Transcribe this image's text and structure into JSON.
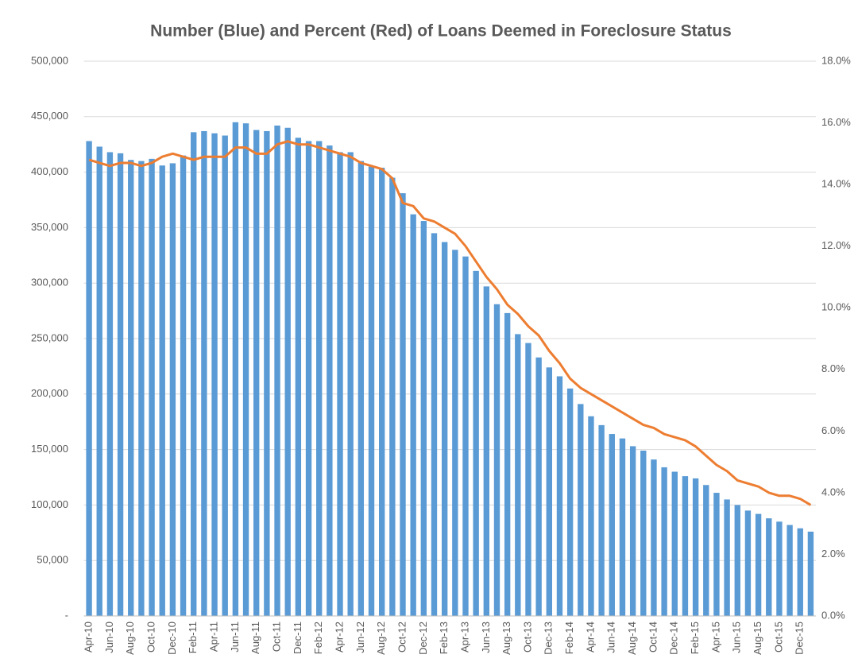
{
  "chart_data": {
    "type": "bar",
    "title": "Number (Blue) and Percent (Red) of Loans Deemed in Foreclosure Status",
    "categories": [
      "Apr-10",
      null,
      "Jun-10",
      null,
      "Aug-10",
      null,
      "Oct-10",
      null,
      "Dec-10",
      null,
      "Feb-11",
      null,
      "Apr-11",
      null,
      "Jun-11",
      null,
      "Aug-11",
      null,
      "Oct-11",
      null,
      "Dec-11",
      null,
      "Feb-12",
      null,
      "Apr-12",
      null,
      "Jun-12",
      null,
      "Aug-12",
      null,
      "Oct-12",
      null,
      "Dec-12",
      null,
      "Feb-13",
      null,
      "Apr-13",
      null,
      "Jun-13",
      null,
      "Aug-13",
      null,
      "Oct-13",
      null,
      "Dec-13",
      null,
      "Feb-14",
      null,
      "Apr-14",
      null,
      "Jun-14",
      null,
      "Aug-14",
      null,
      "Oct-14",
      null,
      "Dec-14",
      null,
      "Feb-15",
      null,
      "Apr-15",
      null,
      "Jun-15",
      null,
      "Aug-15",
      null,
      "Oct-15",
      null,
      "Dec-15",
      null
    ],
    "series": [
      {
        "type": "bar",
        "color": "#5b9bd5",
        "values": [
          428000,
          423000,
          418000,
          417000,
          411000,
          410000,
          412000,
          406000,
          408000,
          415000,
          436000,
          437000,
          435000,
          433000,
          445000,
          444000,
          438000,
          437000,
          442000,
          440000,
          431000,
          428000,
          428000,
          424000,
          418000,
          418000,
          410000,
          405000,
          404000,
          395000,
          381000,
          362000,
          356000,
          345000,
          337000,
          330000,
          324000,
          311000,
          297000,
          281000,
          273000,
          254000,
          246000,
          233000,
          224000,
          216000,
          205000,
          191000,
          180000,
          172000,
          164000,
          160000,
          153000,
          149000,
          141000,
          134000,
          130000,
          126000,
          124000,
          118000,
          111000,
          105000,
          100000,
          95000,
          92000,
          88000,
          85000,
          82000,
          79000,
          76000
        ]
      },
      {
        "type": "line",
        "color": "#ed7d31",
        "axis": "y2",
        "values": [
          14.8,
          14.7,
          14.6,
          14.7,
          14.7,
          14.6,
          14.7,
          14.9,
          15.0,
          14.9,
          14.8,
          14.9,
          14.9,
          14.9,
          15.2,
          15.2,
          15.0,
          15.0,
          15.3,
          15.4,
          15.3,
          15.3,
          15.2,
          15.1,
          15.0,
          14.9,
          14.7,
          14.6,
          14.5,
          14.2,
          13.4,
          13.3,
          12.9,
          12.8,
          12.6,
          12.4,
          12.0,
          11.5,
          11.0,
          10.6,
          10.1,
          9.8,
          9.4,
          9.1,
          8.6,
          8.2,
          7.7,
          7.4,
          7.2,
          7.0,
          6.8,
          6.6,
          6.4,
          6.2,
          6.1,
          5.9,
          5.8,
          5.7,
          5.5,
          5.2,
          4.9,
          4.7,
          4.4,
          4.3,
          4.2,
          4.0,
          3.9,
          3.9,
          3.8,
          3.6
        ]
      }
    ],
    "ylim": [
      0,
      500000
    ],
    "yticks": [
      {
        "value": 0,
        "label": "-"
      },
      {
        "value": 50000,
        "label": "50,000"
      },
      {
        "value": 100000,
        "label": "100,000"
      },
      {
        "value": 150000,
        "label": "150,000"
      },
      {
        "value": 200000,
        "label": "200,000"
      },
      {
        "value": 250000,
        "label": "250,000"
      },
      {
        "value": 300000,
        "label": "300,000"
      },
      {
        "value": 350000,
        "label": "350,000"
      },
      {
        "value": 400000,
        "label": "400,000"
      },
      {
        "value": 450000,
        "label": "450,000"
      },
      {
        "value": 500000,
        "label": "500,000"
      }
    ],
    "y2lim": [
      0,
      18
    ],
    "y2ticks": [
      {
        "value": 0,
        "label": "0.0%"
      },
      {
        "value": 2,
        "label": "2.0%"
      },
      {
        "value": 4,
        "label": "4.0%"
      },
      {
        "value": 6,
        "label": "6.0%"
      },
      {
        "value": 8,
        "label": "8.0%"
      },
      {
        "value": 10,
        "label": "10.0%"
      },
      {
        "value": 12,
        "label": "12.0%"
      },
      {
        "value": 14,
        "label": "14.0%"
      },
      {
        "value": 16,
        "label": "16.0%"
      },
      {
        "value": 18,
        "label": "18.0%"
      }
    ],
    "grid": true
  }
}
